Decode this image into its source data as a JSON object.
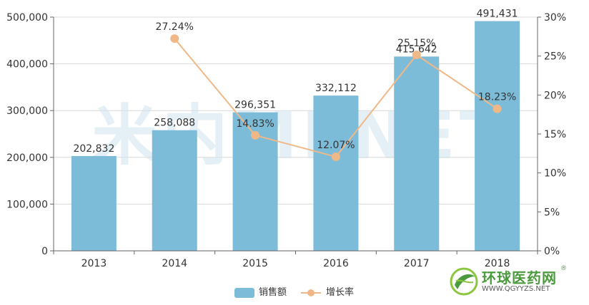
{
  "chart_data": {
    "type": "bar",
    "categories": [
      "2013",
      "2014",
      "2015",
      "2016",
      "2017",
      "2018"
    ],
    "series": [
      {
        "name": "销售额",
        "type": "bar",
        "axis": "left",
        "values": [
          202832,
          258088,
          296351,
          332112,
          415642,
          491431
        ],
        "labels": [
          "202,832",
          "258,088",
          "296,351",
          "332,112",
          "415,642",
          "491,431"
        ],
        "color": "#7dbcd9"
      },
      {
        "name": "增长率",
        "type": "line",
        "axis": "right",
        "values": [
          null,
          27.24,
          14.83,
          12.07,
          25.15,
          18.23
        ],
        "labels": [
          "",
          "27.24%",
          "14.83%",
          "12.07%",
          "25.15%",
          "18.23%"
        ],
        "color": "#f0b887"
      }
    ],
    "y_left": {
      "min": 0,
      "max": 500000,
      "ticks": [
        "0",
        "100,000",
        "200,000",
        "300,000",
        "400,000",
        "500,000"
      ]
    },
    "y_right": {
      "min": 0,
      "max": 30,
      "ticks": [
        "0%",
        "5%",
        "10%",
        "15%",
        "20%",
        "25%",
        "30%"
      ]
    },
    "grid": true,
    "legend_position": "bottom"
  },
  "watermark": {
    "text": "米内MENET"
  },
  "logo": {
    "title": "环球医药网",
    "url": "WWW.QGYYZS.NET",
    "registered": "®"
  }
}
